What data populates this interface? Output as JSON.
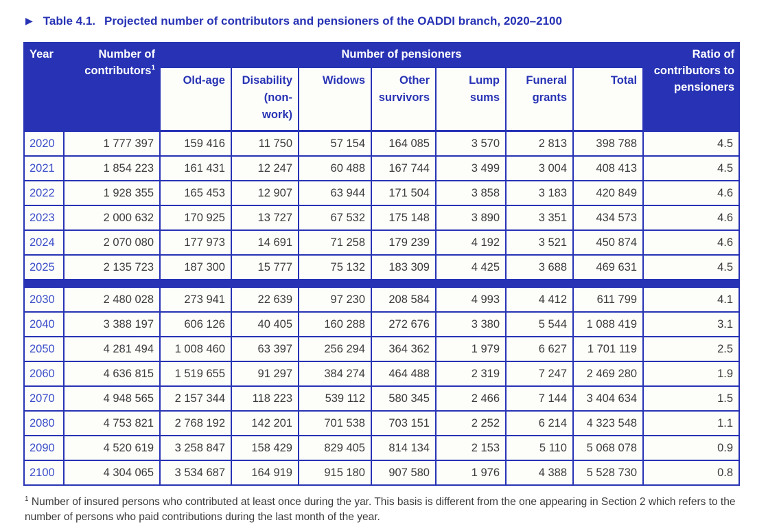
{
  "page": {
    "title_marker": "▶",
    "title_label": "Table 4.1.",
    "title_text": "Projected number of contributors and pensioners of the OADDI branch, 2020–2100"
  },
  "table": {
    "header": {
      "year": "Year",
      "contributors": "Number of contributors",
      "contributors_sup": "1",
      "pensioners_banner": "Number of pensioners",
      "ratio": "Ratio of contributors to pensioners",
      "pensioner_columns": [
        "Old-age",
        "Disability (non-work)",
        "Widows",
        "Other survivors",
        "Lump sums",
        "Funeral grants",
        "Total"
      ]
    },
    "row_groups": [
      {
        "rows": [
          {
            "year": "2020",
            "values": [
              "1 777 397",
              "159 416",
              "11 750",
              "57 154",
              "164 085",
              "3 570",
              "2 813",
              "398 788",
              "4.5"
            ]
          },
          {
            "year": "2021",
            "values": [
              "1 854 223",
              "161 431",
              "12 247",
              "60 488",
              "167 744",
              "3 499",
              "3 004",
              "408 413",
              "4.5"
            ]
          },
          {
            "year": "2022",
            "values": [
              "1 928 355",
              "165 453",
              "12 907",
              "63 944",
              "171 504",
              "3 858",
              "3 183",
              "420 849",
              "4.6"
            ]
          },
          {
            "year": "2023",
            "values": [
              "2 000 632",
              "170 925",
              "13 727",
              "67 532",
              "175 148",
              "3 890",
              "3 351",
              "434 573",
              "4.6"
            ]
          },
          {
            "year": "2024",
            "values": [
              "2 070 080",
              "177 973",
              "14 691",
              "71 258",
              "179 239",
              "4 192",
              "3 521",
              "450 874",
              "4.6"
            ]
          },
          {
            "year": "2025",
            "values": [
              "2 135 723",
              "187 300",
              "15 777",
              "75 132",
              "183 309",
              "4 425",
              "3 688",
              "469 631",
              "4.5"
            ]
          }
        ]
      },
      {
        "rows": [
          {
            "year": "2030",
            "values": [
              "2 480 028",
              "273 941",
              "22 639",
              "97 230",
              "208 584",
              "4 993",
              "4 412",
              "611 799",
              "4.1"
            ]
          },
          {
            "year": "2040",
            "values": [
              "3 388 197",
              "606 126",
              "40 405",
              "160 288",
              "272 676",
              "3 380",
              "5 544",
              "1 088 419",
              "3.1"
            ]
          },
          {
            "year": "2050",
            "values": [
              "4 281 494",
              "1 008 460",
              "63 397",
              "256 294",
              "364 362",
              "1 979",
              "6 627",
              "1 701 119",
              "2.5"
            ]
          },
          {
            "year": "2060",
            "values": [
              "4 636 815",
              "1 519 655",
              "91 297",
              "384 274",
              "464 488",
              "2 319",
              "7 247",
              "2 469 280",
              "1.9"
            ]
          },
          {
            "year": "2070",
            "values": [
              "4 948 565",
              "2 157 344",
              "118 223",
              "539 112",
              "580 345",
              "2 466",
              "7 144",
              "3 404 634",
              "1.5"
            ]
          },
          {
            "year": "2080",
            "values": [
              "4 753 821",
              "2 768 192",
              "142 201",
              "701 538",
              "703 151",
              "2 252",
              "6 214",
              "4 323 548",
              "1.1"
            ]
          },
          {
            "year": "2090",
            "values": [
              "4 520 619",
              "3 258 847",
              "158 429",
              "829 405",
              "814 134",
              "2 153",
              "5 110",
              "5 068 078",
              "0.9"
            ]
          },
          {
            "year": "2100",
            "values": [
              "4 304 065",
              "3 534 687",
              "164 919",
              "915 180",
              "907 580",
              "1 976",
              "4 388",
              "5 528 730",
              "0.8"
            ]
          }
        ]
      }
    ]
  },
  "footnote": {
    "sup": "1",
    "text": "Number of insured persons who contributed at least once during the yar. This basis is different from the one appearing in Section 2 which refers to the number of persons who paid contributions during the last month of the year."
  },
  "colors": {
    "primary_blue": "#2733b4",
    "year_text_blue": "#3b4ec9",
    "data_text": "#3c3c3c",
    "cell_background": "#fdfdfa"
  }
}
